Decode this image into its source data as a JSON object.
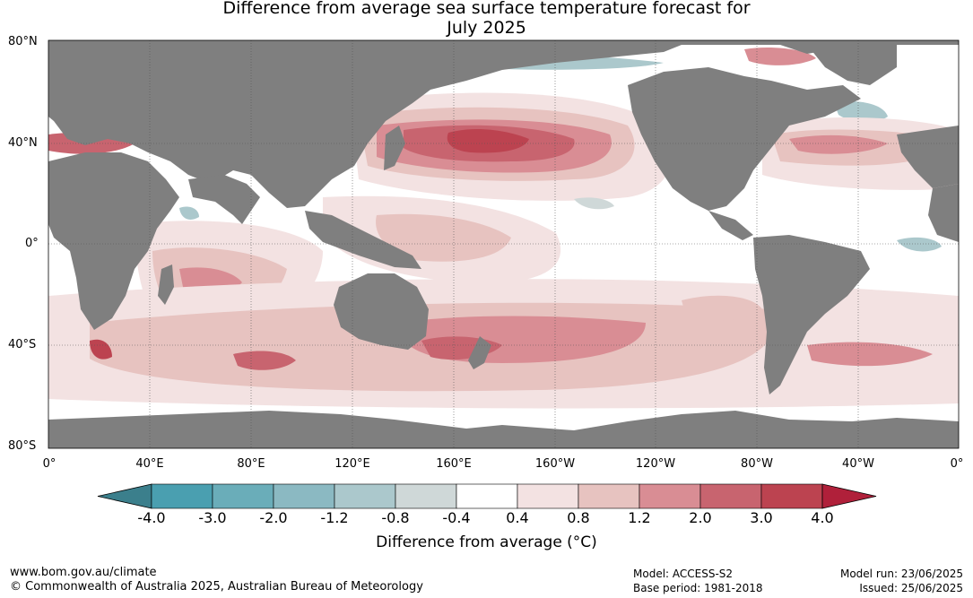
{
  "title": {
    "line1": "Difference from average sea surface temperature forecast for",
    "line2": "July 2025"
  },
  "map": {
    "lat_labels": [
      "80°N",
      "40°N",
      "0°",
      "40°S",
      "80°S"
    ],
    "lon_labels": [
      "0°",
      "40°E",
      "80°E",
      "120°E",
      "160°E",
      "160°W",
      "120°W",
      "80°W",
      "40°W",
      "0°"
    ],
    "land_color": "#7f7f7f",
    "ocean_color": "#ffffff"
  },
  "colorbar": {
    "title": "Difference from average (°C)",
    "tick_labels": [
      "-4.0",
      "-3.0",
      "-2.0",
      "-1.2",
      "-0.8",
      "-0.4",
      "0.4",
      "0.8",
      "1.2",
      "2.0",
      "3.0",
      "4.0"
    ],
    "colors": [
      "#3b7f8c",
      "#4a9fb0",
      "#6aadb9",
      "#8bb9c2",
      "#abc8cc",
      "#cfd8d8",
      "#ffffff",
      "#f3e2e2",
      "#e7c3c0",
      "#d98d94",
      "#c8646f",
      "#bc4350",
      "#b0203a"
    ]
  },
  "footer": {
    "url": "www.bom.gov.au/climate",
    "copyright": "© Commonwealth of Australia 2025, Australian Bureau of Meteorology",
    "model": "Model: ACCESS-S2",
    "base_period": "Base period: 1981-2018",
    "model_run": "Model run: 23/06/2025",
    "issued": "Issued: 25/06/2025"
  }
}
